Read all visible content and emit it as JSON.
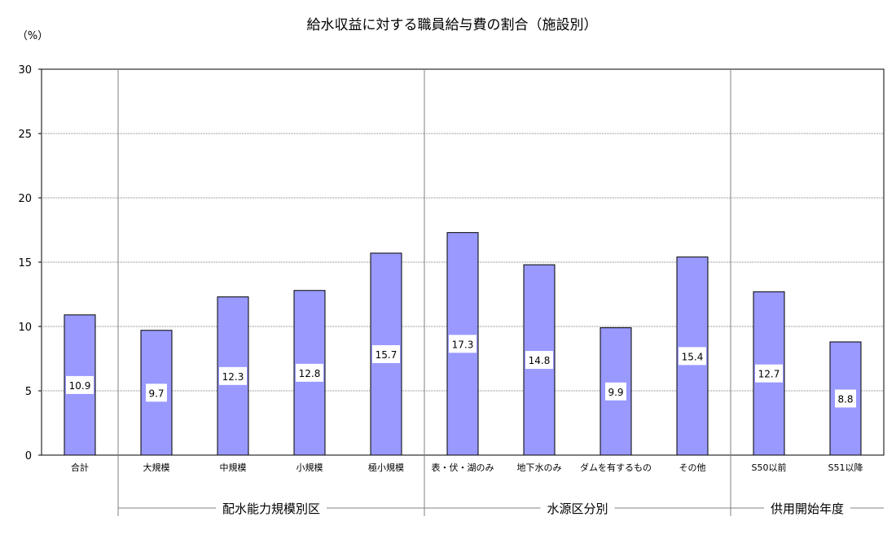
{
  "chart_data": {
    "type": "bar",
    "title": "給水収益に対する職員給与費の割合（施設別）",
    "ylabel": "（%）",
    "xlabel": "",
    "ylim": [
      0,
      30
    ],
    "yticks": [
      0,
      5,
      10,
      15,
      20,
      25,
      30
    ],
    "grid": true,
    "bar_color": "#9999ff",
    "categories": [
      "合計",
      "大規模",
      "中規模",
      "小規模",
      "極小規模",
      "表・伏・湖のみ",
      "地下水のみ",
      "ダムを有するもの",
      "その他",
      "S50以前",
      "S51以降"
    ],
    "values": [
      10.9,
      9.7,
      12.3,
      12.8,
      15.7,
      17.3,
      14.8,
      9.9,
      15.4,
      12.7,
      8.8
    ],
    "value_labels": [
      "10.9",
      "9.7",
      "12.3",
      "12.8",
      "15.7",
      "17.3",
      "14.8",
      "9.9",
      "15.4",
      "12.7",
      "8.8"
    ],
    "groups": [
      {
        "label": "",
        "categories": [
          "合計"
        ]
      },
      {
        "label": "配水能力規模別区",
        "categories": [
          "大規模",
          "中規模",
          "小規模",
          "極小規模"
        ]
      },
      {
        "label": "水源区分別",
        "categories": [
          "表・伏・湖のみ",
          "地下水のみ",
          "ダムを有するもの",
          "その他"
        ]
      },
      {
        "label": "供用開始年度",
        "categories": [
          "S50以前",
          "S51以降"
        ]
      }
    ]
  }
}
